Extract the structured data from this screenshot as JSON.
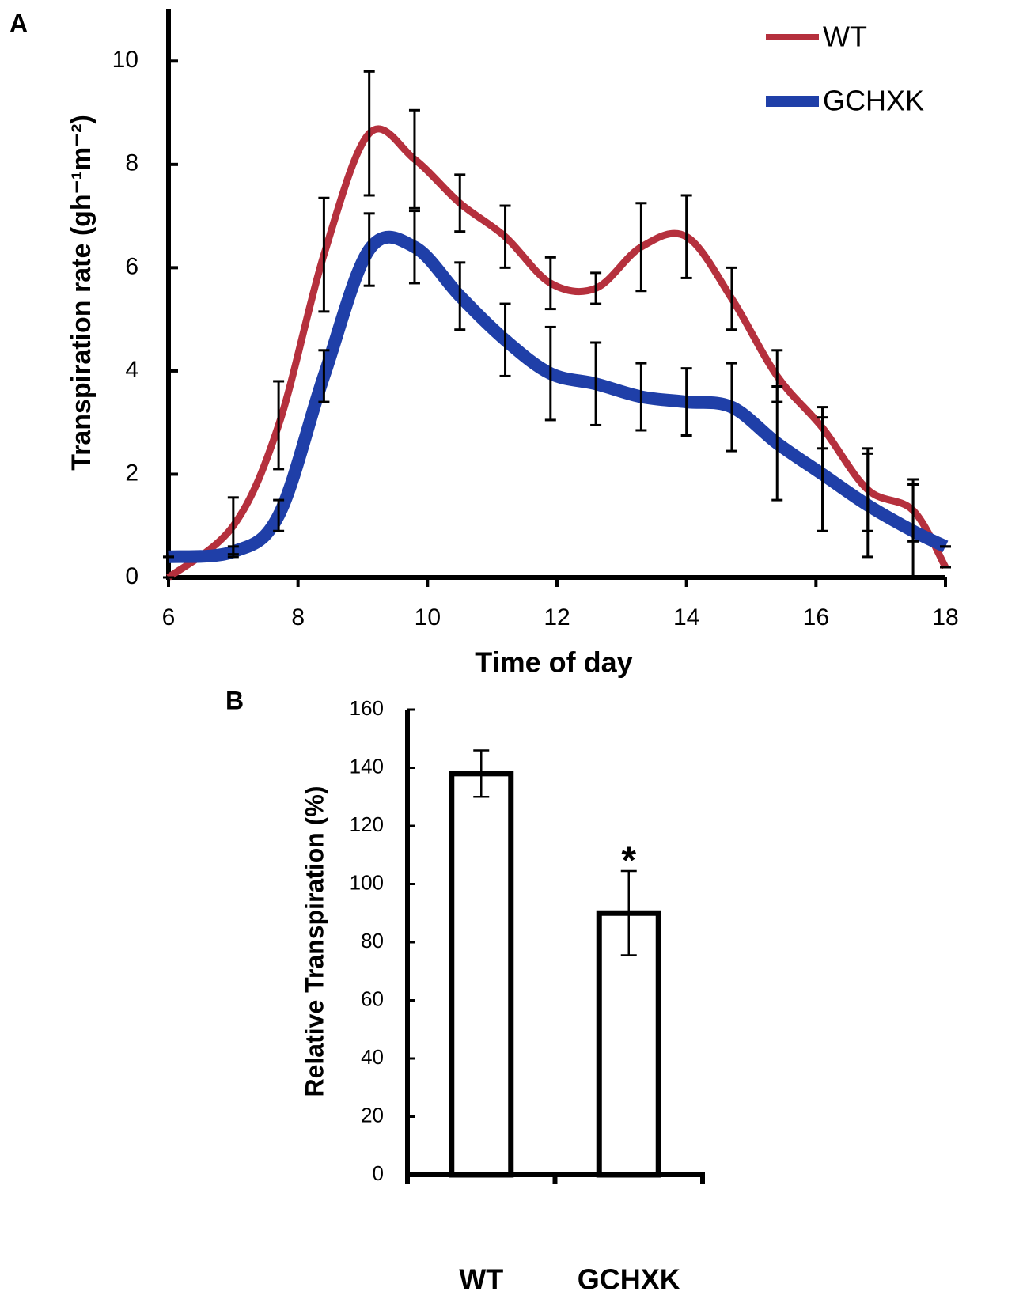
{
  "chart_data": [
    {
      "type": "line",
      "label": "A",
      "xlabel": "Time of day",
      "ylabel": "Transpiration rate  (gh⁻¹m⁻²)",
      "x": [
        6,
        7,
        7.7,
        8.4,
        9.1,
        9.8,
        10.5,
        11.2,
        11.9,
        12.6,
        13.3,
        14,
        14.7,
        15.4,
        16.1,
        16.8,
        17.5,
        18
      ],
      "series": [
        {
          "name": "WT",
          "color": "#b5303d",
          "values": [
            0,
            1.0,
            2.95,
            6.25,
            8.6,
            8.1,
            7.25,
            6.6,
            5.7,
            5.6,
            6.4,
            6.6,
            5.4,
            3.9,
            2.9,
            1.7,
            1.3,
            0.2
          ],
          "errors": [
            0,
            0.55,
            0.85,
            1.1,
            1.2,
            0.95,
            0.55,
            0.6,
            0.5,
            0.3,
            0.85,
            0.8,
            0.6,
            0.5,
            0.4,
            0.8,
            0.6,
            0
          ]
        },
        {
          "name": "GCHXK",
          "color": "#1f3fa8",
          "values": [
            0.4,
            0.5,
            1.2,
            3.9,
            6.35,
            6.4,
            5.45,
            4.6,
            3.95,
            3.75,
            3.5,
            3.4,
            3.3,
            2.6,
            2.0,
            1.4,
            0.9,
            0.6
          ],
          "errors": [
            0,
            0.1,
            0.3,
            0.5,
            0.7,
            0.7,
            0.65,
            0.7,
            0.9,
            0.8,
            0.65,
            0.65,
            0.85,
            1.1,
            1.1,
            1.0,
            0.9,
            0
          ]
        }
      ],
      "xlim": [
        6,
        18
      ],
      "xticks": [
        6,
        8,
        10,
        12,
        14,
        16,
        18
      ],
      "ylim": [
        0,
        11
      ],
      "yticks": [
        0,
        2,
        4,
        6,
        8,
        10
      ],
      "legend": "upper right"
    },
    {
      "type": "bar",
      "label": "B",
      "ylabel": "Relative Transpiration (%)",
      "categories": [
        "WT",
        "GCHXK"
      ],
      "values": [
        138,
        90
      ],
      "errors": [
        8,
        14.5
      ],
      "annotations": [
        "",
        "*"
      ],
      "ylim": [
        0,
        160
      ],
      "yticks": [
        0,
        20,
        40,
        60,
        80,
        100,
        120,
        140,
        160
      ],
      "color": "#ffffff"
    }
  ]
}
